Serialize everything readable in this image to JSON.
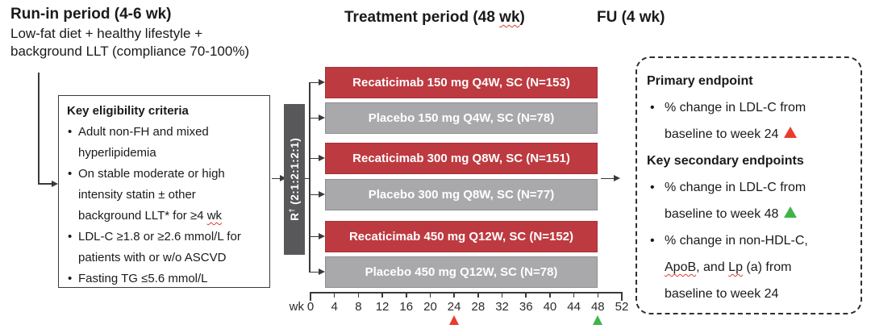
{
  "figure": {
    "run_in": {
      "title": "Run-in period (4-6 wk)",
      "subtitle_line1": "Low-fat diet + healthy lifestyle +",
      "subtitle_line2": "background LLT (compliance 70-100%)"
    },
    "treatment_header": {
      "pre": "Treatment period (48 ",
      "wavy": "wk",
      "post": ")"
    },
    "fu_title": "FU (4 wk)",
    "eligibility": {
      "title": "Key eligibility criteria",
      "bullet_glyph": "•",
      "bullet1": "Adult non-FH and mixed hyperlipidemia",
      "bullet2_pre": "On stable moderate or high intensity statin ± other background LLT* for ≥4 ",
      "bullet2_wavy": "wk",
      "bullet3": "LDL-C ≥1.8 or ≥2.6 mmol/L for patients with or w/o ASCVD",
      "bullet4": "Fasting TG ≤5.6 mmol/L"
    },
    "randomization": {
      "r": "R",
      "dagger": "†",
      "ratio": " (2:1:2:1:2:1)"
    },
    "arms": [
      {
        "label": "Recaticimab 150 mg Q4W, SC (N=153)",
        "type": "treatment"
      },
      {
        "label": "Placebo 150 mg Q4W, SC (N=78)",
        "type": "placebo"
      },
      {
        "label": "Recaticimab 300 mg Q8W, SC (N=151)",
        "type": "treatment"
      },
      {
        "label": "Placebo 300 mg Q8W, SC (N=77)",
        "type": "placebo"
      },
      {
        "label": "Recaticimab 450 mg Q12W, SC (N=152)",
        "type": "treatment"
      },
      {
        "label": "Placebo 450 mg Q12W, SC (N=78)",
        "type": "placebo"
      }
    ],
    "axis": {
      "unit": "wk",
      "ticks": [
        "0",
        "4",
        "8",
        "12",
        "16",
        "20",
        "24",
        "28",
        "32",
        "36",
        "40",
        "44",
        "48",
        "52"
      ],
      "primary_marker_tick_index": 6,
      "secondary_marker_tick_index": 12
    },
    "endpoints": {
      "primary_title": "Primary endpoint",
      "primary_bullet": "% change in LDL-C from baseline to week 24",
      "secondary_title": "Key secondary endpoints",
      "secondary_bullet1": "% change in LDL-C from baseline to week 48",
      "sb2_pre": "% change in non-HDL-C, ",
      "sb2_apob": "ApoB",
      "sb2_mid": ", and ",
      "sb2_lp": "Lp",
      "sb2_post": " (a) from baseline to week 24",
      "bullet_glyph": "•"
    },
    "colors": {
      "treatment_red": "#BE3A41",
      "placebo_gray": "#A9A9AB",
      "randomization_gray": "#58585A",
      "marker_red": "#EA3B2E",
      "marker_green": "#3DB54A"
    }
  }
}
